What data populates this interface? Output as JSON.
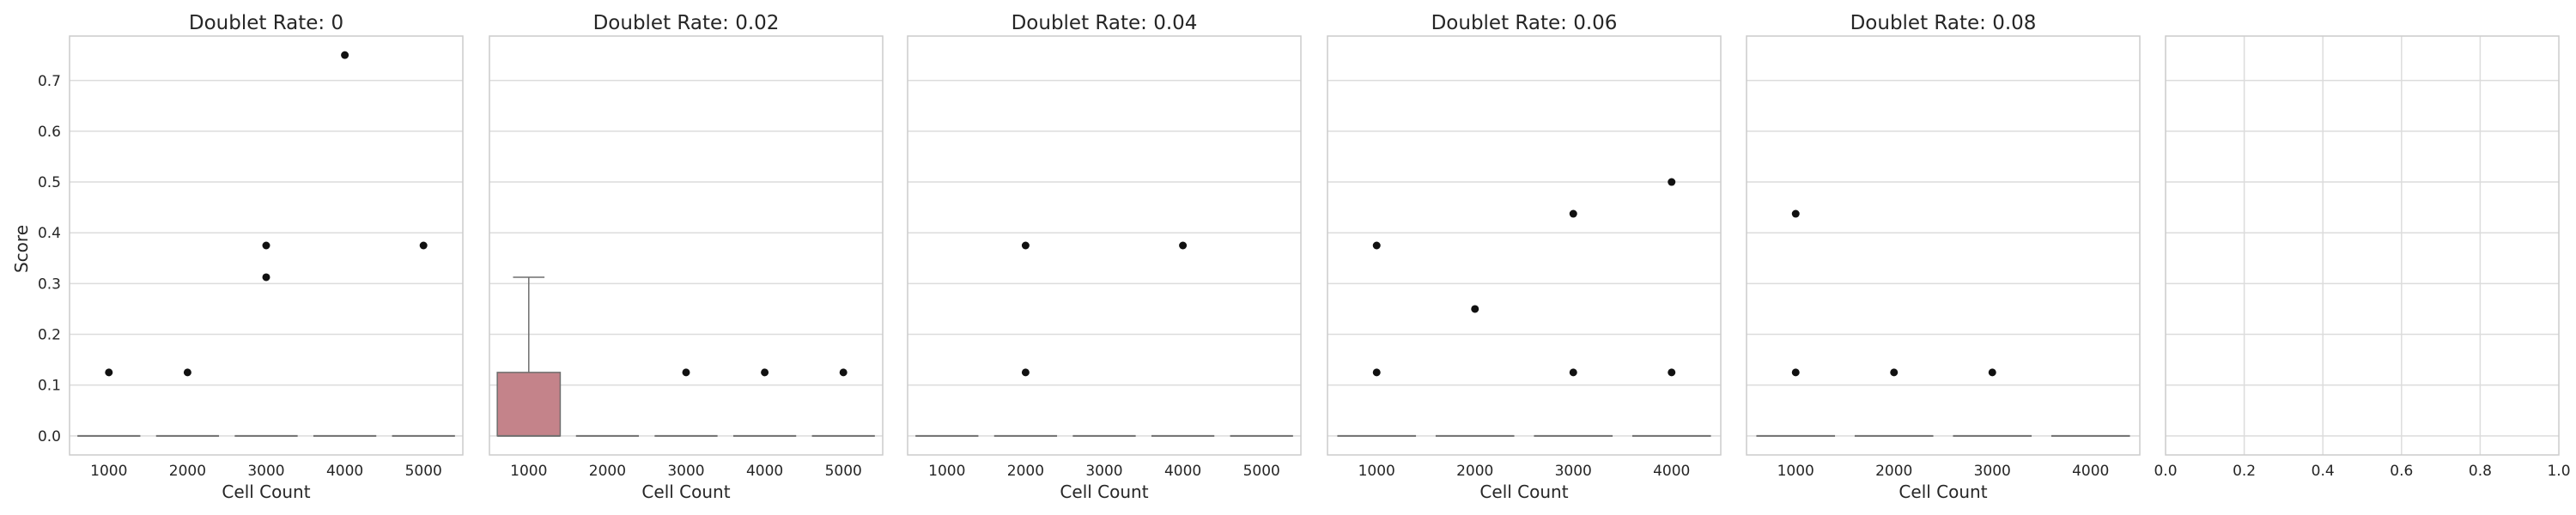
{
  "figure": {
    "ylabel": "Score"
  },
  "chart_data": [
    {
      "type": "box",
      "title": "Doublet Rate: 0",
      "xlabel": "Cell Count",
      "ylabel": "Score",
      "ylim": [
        -0.0375,
        0.7875
      ],
      "yticks": [
        "0.0",
        "0.1",
        "0.2",
        "0.3",
        "0.4",
        "0.5",
        "0.6",
        "0.7"
      ],
      "categories": [
        "1000",
        "2000",
        "3000",
        "4000",
        "5000"
      ],
      "boxes": [
        {
          "q1": 0,
          "median": 0,
          "q3": 0,
          "whisker_low": 0,
          "whisker_high": 0,
          "outliers": [
            0.125
          ]
        },
        {
          "q1": 0,
          "median": 0,
          "q3": 0,
          "whisker_low": 0,
          "whisker_high": 0,
          "outliers": [
            0.125
          ]
        },
        {
          "q1": 0,
          "median": 0,
          "q3": 0,
          "whisker_low": 0,
          "whisker_high": 0,
          "outliers": [
            0.3125,
            0.375
          ]
        },
        {
          "q1": 0,
          "median": 0,
          "q3": 0,
          "whisker_low": 0,
          "whisker_high": 0,
          "outliers": [
            0.75
          ]
        },
        {
          "q1": 0,
          "median": 0,
          "q3": 0,
          "whisker_low": 0,
          "whisker_high": 0,
          "outliers": [
            0.375
          ]
        }
      ],
      "grid": true
    },
    {
      "type": "box",
      "title": "Doublet Rate: 0.02",
      "xlabel": "Cell Count",
      "ylim": [
        -0.0375,
        0.7875
      ],
      "categories": [
        "1000",
        "2000",
        "3000",
        "4000",
        "5000"
      ],
      "boxes": [
        {
          "q1": 0,
          "median": 0,
          "q3": 0.125,
          "whisker_low": 0,
          "whisker_high": 0.3125,
          "outliers": []
        },
        {
          "q1": 0,
          "median": 0,
          "q3": 0,
          "whisker_low": 0,
          "whisker_high": 0,
          "outliers": []
        },
        {
          "q1": 0,
          "median": 0,
          "q3": 0,
          "whisker_low": 0,
          "whisker_high": 0,
          "outliers": [
            0.125
          ]
        },
        {
          "q1": 0,
          "median": 0,
          "q3": 0,
          "whisker_low": 0,
          "whisker_high": 0,
          "outliers": [
            0.125
          ]
        },
        {
          "q1": 0,
          "median": 0,
          "q3": 0,
          "whisker_low": 0,
          "whisker_high": 0,
          "outliers": [
            0.125
          ]
        }
      ],
      "grid": true
    },
    {
      "type": "box",
      "title": "Doublet Rate: 0.04",
      "xlabel": "Cell Count",
      "ylim": [
        -0.0375,
        0.7875
      ],
      "categories": [
        "1000",
        "2000",
        "3000",
        "4000",
        "5000"
      ],
      "boxes": [
        {
          "q1": 0,
          "median": 0,
          "q3": 0,
          "whisker_low": 0,
          "whisker_high": 0,
          "outliers": []
        },
        {
          "q1": 0,
          "median": 0,
          "q3": 0,
          "whisker_low": 0,
          "whisker_high": 0,
          "outliers": [
            0.125,
            0.375
          ]
        },
        {
          "q1": 0,
          "median": 0,
          "q3": 0,
          "whisker_low": 0,
          "whisker_high": 0,
          "outliers": []
        },
        {
          "q1": 0,
          "median": 0,
          "q3": 0,
          "whisker_low": 0,
          "whisker_high": 0,
          "outliers": [
            0.375
          ]
        },
        {
          "q1": 0,
          "median": 0,
          "q3": 0,
          "whisker_low": 0,
          "whisker_high": 0,
          "outliers": []
        }
      ],
      "grid": true
    },
    {
      "type": "box",
      "title": "Doublet Rate: 0.06",
      "xlabel": "Cell Count",
      "ylim": [
        -0.0375,
        0.7875
      ],
      "categories": [
        "1000",
        "2000",
        "3000",
        "4000"
      ],
      "boxes": [
        {
          "q1": 0,
          "median": 0,
          "q3": 0,
          "whisker_low": 0,
          "whisker_high": 0,
          "outliers": [
            0.125,
            0.375
          ]
        },
        {
          "q1": 0,
          "median": 0,
          "q3": 0,
          "whisker_low": 0,
          "whisker_high": 0,
          "outliers": [
            0.25
          ]
        },
        {
          "q1": 0,
          "median": 0,
          "q3": 0,
          "whisker_low": 0,
          "whisker_high": 0,
          "outliers": [
            0.125,
            0.4375
          ]
        },
        {
          "q1": 0,
          "median": 0,
          "q3": 0,
          "whisker_low": 0,
          "whisker_high": 0,
          "outliers": [
            0.125,
            0.5
          ]
        }
      ],
      "grid": true
    },
    {
      "type": "box",
      "title": "Doublet Rate: 0.08",
      "xlabel": "Cell Count",
      "ylim": [
        -0.0375,
        0.7875
      ],
      "categories": [
        "1000",
        "2000",
        "3000",
        "4000"
      ],
      "boxes": [
        {
          "q1": 0,
          "median": 0,
          "q3": 0,
          "whisker_low": 0,
          "whisker_high": 0,
          "outliers": [
            0.125,
            0.4375
          ]
        },
        {
          "q1": 0,
          "median": 0,
          "q3": 0,
          "whisker_low": 0,
          "whisker_high": 0,
          "outliers": [
            0.125
          ]
        },
        {
          "q1": 0,
          "median": 0,
          "q3": 0,
          "whisker_low": 0,
          "whisker_high": 0,
          "outliers": [
            0.125
          ]
        },
        {
          "q1": 0,
          "median": 0,
          "q3": 0,
          "whisker_low": 0,
          "whisker_high": 0,
          "outliers": []
        }
      ],
      "grid": true
    },
    {
      "type": "empty",
      "title": "",
      "xlim": [
        0,
        1
      ],
      "ylim": [
        -0.0375,
        0.7875
      ],
      "xticks": [
        "0.0",
        "0.2",
        "0.4",
        "0.6",
        "0.8",
        "1.0"
      ],
      "grid": true
    }
  ],
  "colors": {
    "box_fill": "#c4838a",
    "box_edge": "#6e6e6e",
    "outlier": "#111111",
    "grid": "#dcdcdc",
    "spine": "#cccccc"
  }
}
